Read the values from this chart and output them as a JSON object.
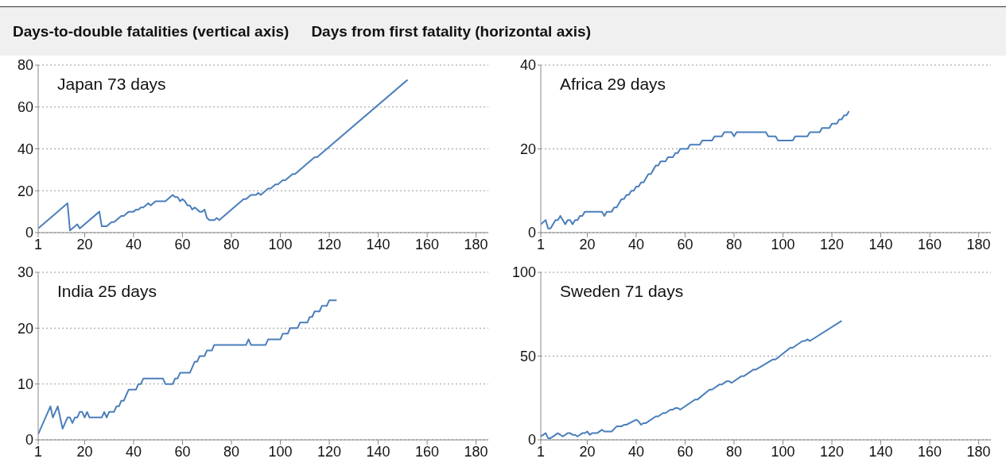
{
  "chart_data": [
    {
      "type": "line",
      "title": "Japan 73 days",
      "annotations": [
        "Days-to-double fatalities (vertical axis)",
        "Days from first fatality (horizontal axis)"
      ],
      "color": "#4a7ebb",
      "grid": "y",
      "x": [
        1,
        13,
        14,
        17,
        18,
        26,
        27,
        29,
        31,
        32,
        35,
        36,
        38,
        40,
        41,
        42,
        43,
        44,
        46,
        47,
        49,
        53,
        56,
        57,
        58,
        59,
        60,
        61,
        62,
        63,
        64,
        65,
        67,
        68,
        69,
        70,
        71,
        73,
        74,
        75,
        85,
        86,
        88,
        90,
        91,
        92,
        95,
        96,
        98,
        99,
        101,
        102,
        105,
        106,
        114,
        115,
        152
      ],
      "values": [
        2,
        14,
        1,
        4,
        2,
        10,
        3,
        3,
        5,
        5,
        8,
        8,
        10,
        10,
        11,
        11,
        12,
        12,
        14,
        13,
        15,
        15,
        18,
        17,
        17,
        15,
        16,
        15,
        13,
        13,
        11,
        12,
        10,
        10,
        11,
        7,
        6,
        6,
        7,
        6,
        16,
        16,
        18,
        18,
        19,
        18,
        21,
        21,
        23,
        23,
        25,
        25,
        28,
        28,
        36,
        36,
        73
      ],
      "xlim": [
        1,
        185
      ],
      "xticks": [
        1,
        20,
        40,
        60,
        80,
        100,
        120,
        140,
        160,
        180
      ],
      "ylim": [
        0,
        80
      ],
      "yticks": [
        0,
        20,
        40,
        60,
        80
      ]
    },
    {
      "type": "line",
      "title": "Africa 29 days",
      "color": "#4a7ebb",
      "grid": "y",
      "x": [
        1,
        3,
        4,
        5,
        7,
        8,
        9,
        11,
        12,
        13,
        14,
        15,
        16,
        17,
        18,
        19,
        26,
        27,
        28,
        30,
        31,
        32,
        33,
        34,
        35,
        36,
        37,
        38,
        39,
        40,
        41,
        42,
        43,
        44,
        45,
        46,
        47,
        48,
        49,
        50,
        52,
        53,
        55,
        56,
        57,
        58,
        61,
        62,
        66,
        67,
        71,
        72,
        75,
        76,
        79,
        80,
        81,
        93,
        94,
        97,
        98,
        104,
        105,
        110,
        111,
        115,
        116,
        119,
        120,
        122,
        123,
        124,
        125,
        126,
        127
      ],
      "values": [
        2,
        3,
        1,
        1,
        3,
        3,
        4,
        2,
        3,
        3,
        2,
        3,
        3,
        4,
        4,
        5,
        5,
        4,
        5,
        5,
        6,
        6,
        7,
        8,
        8,
        9,
        9,
        10,
        10,
        11,
        11,
        12,
        12,
        13,
        14,
        14,
        15,
        16,
        16,
        17,
        17,
        18,
        18,
        19,
        19,
        20,
        20,
        21,
        21,
        22,
        22,
        23,
        23,
        24,
        24,
        23,
        24,
        24,
        23,
        23,
        22,
        22,
        23,
        23,
        24,
        24,
        25,
        25,
        26,
        26,
        27,
        27,
        28,
        28,
        29
      ],
      "xlim": [
        1,
        185
      ],
      "xticks": [
        1,
        20,
        40,
        60,
        80,
        100,
        120,
        140,
        160,
        180
      ],
      "ylim": [
        0,
        40
      ],
      "yticks": [
        0,
        20,
        40
      ]
    },
    {
      "type": "line",
      "title": "India 25 days",
      "color": "#4a7ebb",
      "grid": "y",
      "x": [
        1,
        6,
        7,
        9,
        11,
        13,
        14,
        15,
        16,
        17,
        18,
        19,
        20,
        21,
        22,
        27,
        28,
        29,
        30,
        32,
        33,
        34,
        35,
        36,
        38,
        41,
        42,
        43,
        44,
        52,
        53,
        56,
        57,
        58,
        59,
        63,
        65,
        66,
        67,
        69,
        70,
        72,
        73,
        86,
        87,
        88,
        94,
        95,
        100,
        101,
        103,
        104,
        107,
        108,
        111,
        112,
        113,
        114,
        116,
        117,
        119,
        120,
        123
      ],
      "values": [
        1,
        6,
        4,
        6,
        2,
        4,
        4,
        3,
        4,
        4,
        5,
        5,
        4,
        5,
        4,
        4,
        5,
        4,
        5,
        5,
        6,
        6,
        7,
        7,
        9,
        9,
        10,
        10,
        11,
        11,
        10,
        10,
        11,
        11,
        12,
        12,
        14,
        14,
        15,
        15,
        16,
        16,
        17,
        17,
        18,
        17,
        17,
        18,
        18,
        19,
        19,
        20,
        20,
        21,
        21,
        22,
        22,
        23,
        23,
        24,
        24,
        25,
        25
      ],
      "xlim": [
        1,
        185
      ],
      "xticks": [
        1,
        20,
        40,
        60,
        80,
        100,
        120,
        140,
        160,
        180
      ],
      "ylim": [
        0,
        30
      ],
      "yticks": [
        0,
        10,
        20,
        30
      ]
    },
    {
      "type": "line",
      "title": "Sweden 71 days",
      "color": "#4a7ebb",
      "grid": "y",
      "x": [
        1,
        3,
        4,
        5,
        8,
        10,
        12,
        13,
        14,
        15,
        16,
        18,
        19,
        20,
        21,
        22,
        24,
        26,
        27,
        30,
        32,
        34,
        35,
        36,
        40,
        41,
        42,
        43,
        44,
        48,
        49,
        51,
        52,
        54,
        55,
        56,
        57,
        58,
        63,
        64,
        65,
        70,
        71,
        74,
        75,
        77,
        78,
        79,
        83,
        84,
        88,
        89,
        96,
        97,
        103,
        104,
        108,
        109,
        110,
        111,
        124
      ],
      "values": [
        2,
        4,
        1,
        1,
        4,
        2,
        4,
        4,
        3,
        3,
        2,
        4,
        4,
        5,
        3,
        4,
        4,
        6,
        5,
        5,
        8,
        8,
        9,
        9,
        12,
        11,
        9,
        10,
        10,
        14,
        14,
        16,
        16,
        18,
        18,
        19,
        19,
        18,
        23,
        24,
        24,
        30,
        30,
        33,
        33,
        35,
        35,
        34,
        38,
        38,
        42,
        42,
        48,
        48,
        55,
        55,
        59,
        59,
        60,
        59,
        71
      ],
      "xlim": [
        1,
        185
      ],
      "xticks": [
        1,
        20,
        40,
        60,
        80,
        100,
        120,
        140,
        160,
        180
      ],
      "ylim": [
        0,
        100
      ],
      "yticks": [
        0,
        50,
        100
      ]
    }
  ]
}
